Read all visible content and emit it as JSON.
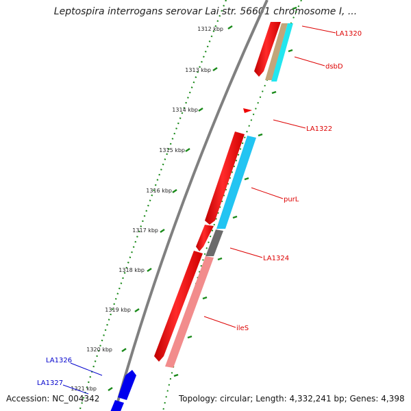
{
  "title": "Leptospira interrogans serovar Lai str. 56601 chromosome I, ...",
  "footer": {
    "accession": "Accession: NC_004342",
    "summary": "Topology: circular; Length: 4,332,241 bp; Genes: 4,398"
  },
  "colors": {
    "backbone": "#808080",
    "tick_green": "#1a8a1a",
    "forward_cds": "#ff0000",
    "label_red": "#dd0000",
    "label_blue": "#0000cc",
    "reverse_cds": "#0000ee"
  },
  "ticks": [
    {
      "label": "1312 kbp"
    },
    {
      "label": "1313 kbp"
    },
    {
      "label": "1314 kbp"
    },
    {
      "label": "1315 kbp"
    },
    {
      "label": "1316 kbp"
    },
    {
      "label": "1317 kbp"
    },
    {
      "label": "1318 kbp"
    },
    {
      "label": "1319 kbp"
    },
    {
      "label": "1320 kbp"
    },
    {
      "label": "1321 kbp"
    }
  ],
  "gene_labels": [
    {
      "text": "LA1320",
      "strand": "forward"
    },
    {
      "text": "dsbD",
      "strand": "forward"
    },
    {
      "text": "LA1322",
      "strand": "forward"
    },
    {
      "text": "purL",
      "strand": "forward"
    },
    {
      "text": "LA1324",
      "strand": "forward"
    },
    {
      "text": "ileS",
      "strand": "forward"
    },
    {
      "text": "LA1326",
      "strand": "reverse"
    },
    {
      "text": "LA1327",
      "strand": "reverse"
    }
  ]
}
